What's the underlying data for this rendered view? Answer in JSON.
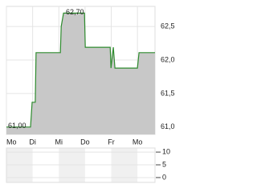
{
  "chart_data": [
    {
      "type": "line",
      "x": [
        0,
        0.92,
        0.98,
        1.1,
        1.13,
        2.06,
        2.09,
        2.18,
        2.98,
        3.01,
        3.96,
        3.99,
        4.08,
        4.14,
        5.0,
        5.06,
        5.67
      ],
      "series": [
        {
          "color": "#2e8b2e",
          "values": [
            61.0,
            61.0,
            61.37,
            61.37,
            62.11,
            62.11,
            62.5,
            62.7,
            62.7,
            62.19,
            62.19,
            61.88,
            62.19,
            61.88,
            61.88,
            62.11,
            62.11
          ]
        }
      ],
      "area_color": "#c8c8c8",
      "xlim": [
        0,
        5.67
      ],
      "xticks": [
        {
          "value": 0,
          "label": "Mo"
        },
        {
          "value": 1,
          "label": "Di"
        },
        {
          "value": 2,
          "label": "Mi"
        },
        {
          "value": 3,
          "label": "Do"
        },
        {
          "value": 4,
          "label": "Fr"
        },
        {
          "value": 5,
          "label": "Mo"
        }
      ],
      "ylim": [
        60.89,
        62.8
      ],
      "yticks": [
        {
          "value": 61.0,
          "label": "61,0"
        },
        {
          "value": 61.5,
          "label": "61,5"
        },
        {
          "value": 62.0,
          "label": "62,0"
        },
        {
          "value": 62.5,
          "label": "62,5"
        }
      ],
      "grid": true,
      "annotations": [
        {
          "text": "62,70",
          "value": 62.7
        },
        {
          "text": "61,00",
          "value": 61.0
        }
      ]
    },
    {
      "type": "bar",
      "ylim": [
        -1.9,
        11.6
      ],
      "yticks": [
        0,
        5,
        10
      ],
      "grid": true
    }
  ]
}
